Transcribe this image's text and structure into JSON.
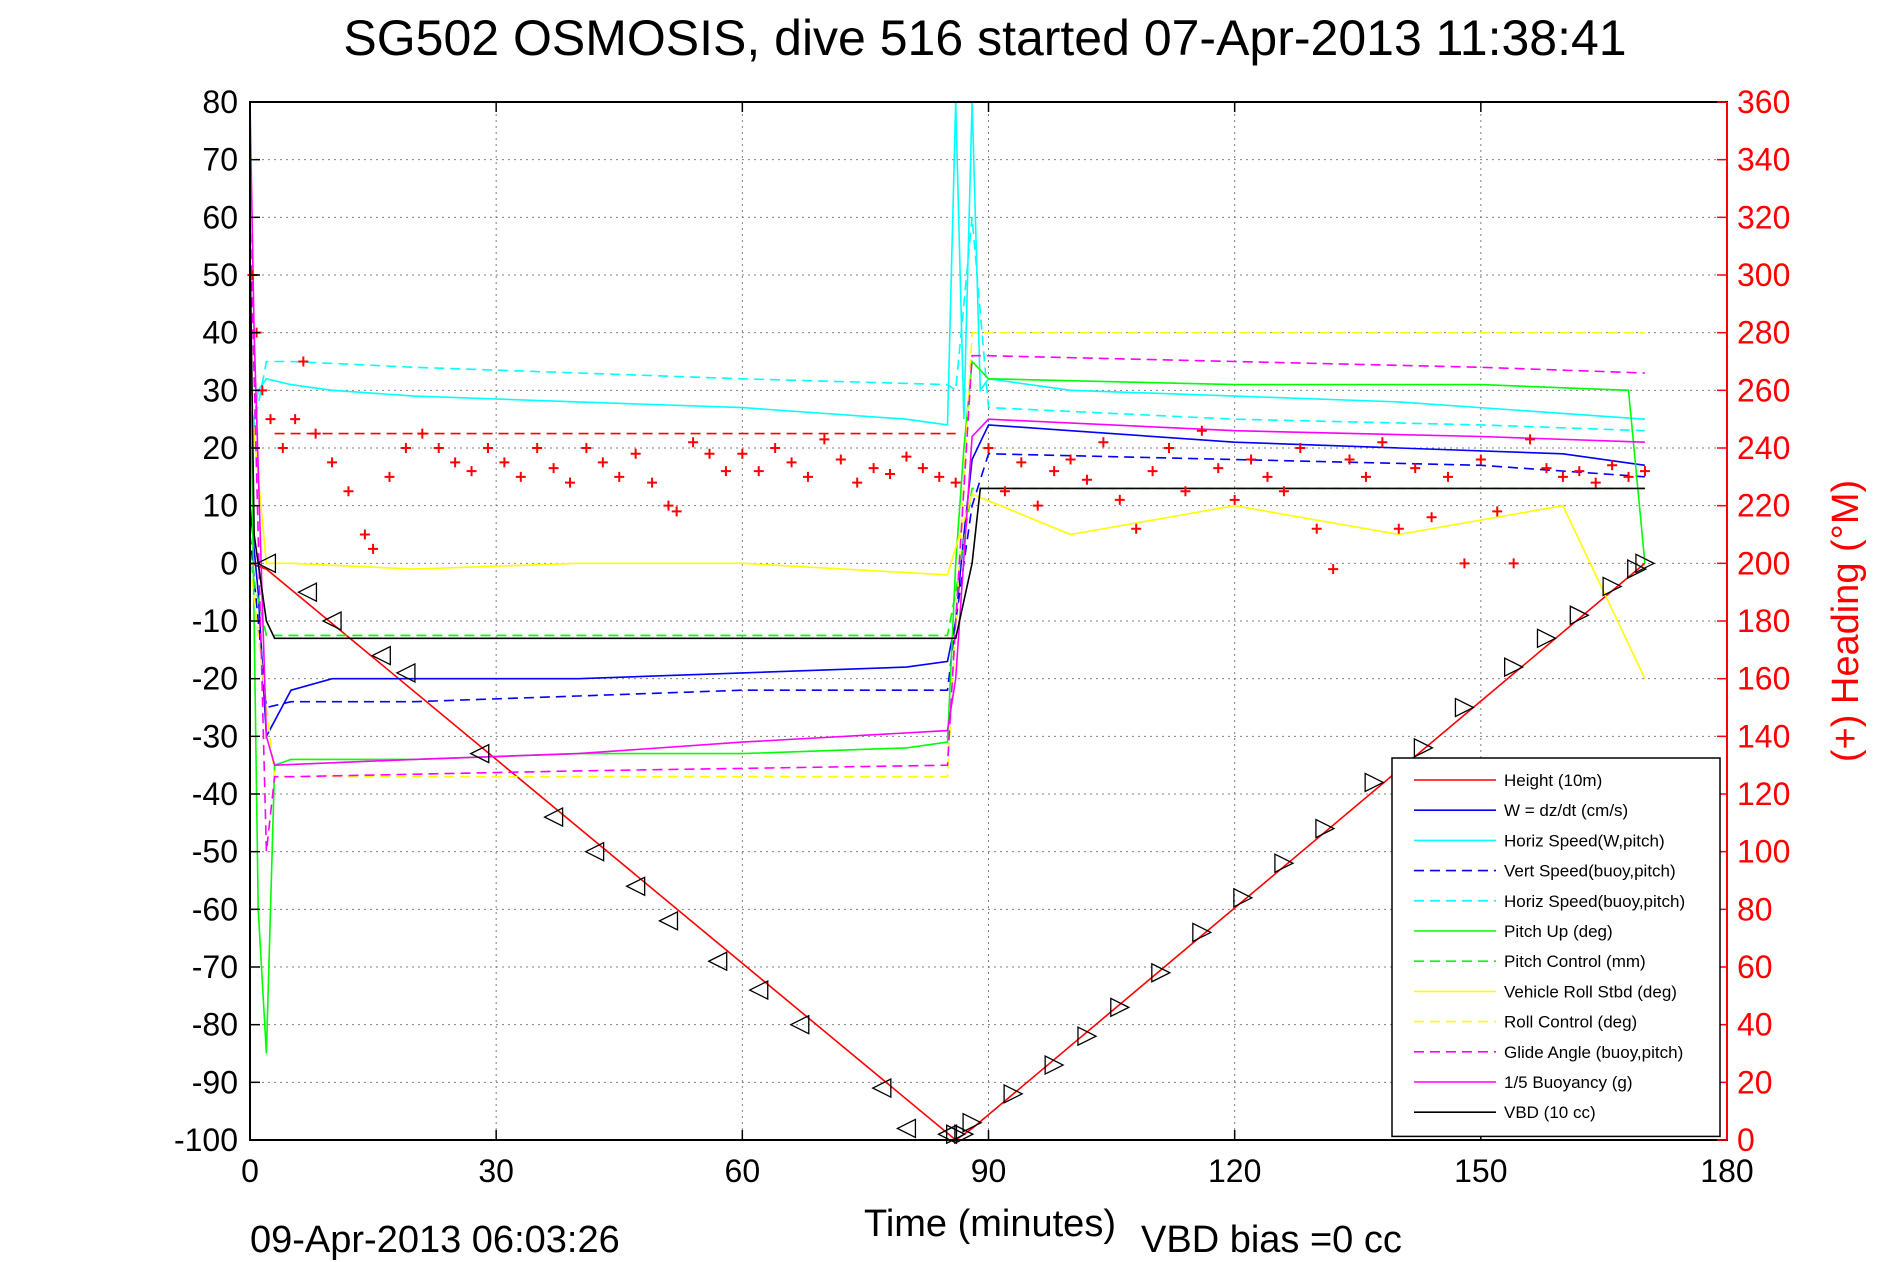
{
  "chart_data": {
    "type": "line",
    "title": "SG502 OSMOSIS, dive 516 started 07-Apr-2013 11:38:41",
    "xlabel": "Time (minutes)",
    "ylabel": "",
    "y2label": "(+) Heading (°M)",
    "xlim": [
      0,
      180
    ],
    "ylim": [
      -100,
      80
    ],
    "y2lim": [
      0,
      360
    ],
    "xticks": [
      "0",
      "30",
      "60",
      "90",
      "120",
      "150",
      "180"
    ],
    "yticks": [
      "80",
      "70",
      "60",
      "50",
      "40",
      "30",
      "20",
      "10",
      "0",
      "-10",
      "-20",
      "-30",
      "-40",
      "-50",
      "-60",
      "-70",
      "-80",
      "-90",
      "-100"
    ],
    "y2ticks": [
      "360",
      "340",
      "320",
      "300",
      "280",
      "260",
      "240",
      "220",
      "200",
      "180",
      "160",
      "140",
      "120",
      "100",
      "80",
      "60",
      "40",
      "20",
      "0"
    ],
    "grid": true,
    "legend_position": "bottom-right",
    "footer_left": "09-Apr-2013 06:03:26",
    "footer_right": "VBD bias =0 cc",
    "colors": {
      "title": "#000000",
      "right_axis": "#ff0000",
      "grid": "#808080"
    },
    "series": [
      {
        "name": "Height (10m)",
        "color": "#ff0000",
        "style": "solid",
        "x": [
          0,
          2,
          86,
          88,
          170
        ],
        "y": [
          0,
          -1,
          -100,
          -98,
          0
        ]
      },
      {
        "name": "W = dz/dt (cm/s)",
        "color": "#0000ff",
        "style": "solid",
        "x": [
          0,
          1,
          2,
          5,
          10,
          20,
          40,
          60,
          80,
          85,
          86,
          87,
          88,
          90,
          100,
          120,
          140,
          160,
          170
        ],
        "y": [
          10,
          -5,
          -30,
          -22,
          -20,
          -20,
          -20,
          -19,
          -18,
          -17,
          -10,
          5,
          18,
          24,
          23,
          21,
          20,
          19,
          17
        ]
      },
      {
        "name": "Horiz Speed(W,pitch)",
        "color": "#00ffff",
        "style": "solid",
        "x": [
          0,
          1,
          2,
          5,
          10,
          20,
          40,
          60,
          80,
          85,
          86,
          87,
          88,
          89,
          90,
          100,
          120,
          140,
          160,
          170
        ],
        "y": [
          20,
          30,
          32,
          31,
          30,
          29,
          28,
          27,
          25,
          24,
          80,
          25,
          80,
          30,
          32,
          30,
          29,
          28,
          26,
          25
        ]
      },
      {
        "name": "Vert Speed(buoy,pitch)",
        "color": "#0000ff",
        "style": "dashed",
        "x": [
          0,
          2,
          5,
          20,
          40,
          60,
          85,
          86,
          88,
          90,
          120,
          150,
          170
        ],
        "y": [
          5,
          -25,
          -24,
          -24,
          -23,
          -22,
          -22,
          -10,
          10,
          19,
          18,
          17,
          15
        ]
      },
      {
        "name": "Horiz Speed(buoy,pitch)",
        "color": "#00ffff",
        "style": "dashed",
        "x": [
          0,
          2,
          5,
          20,
          40,
          60,
          85,
          86,
          88,
          90,
          120,
          150,
          170
        ],
        "y": [
          20,
          35,
          35,
          34,
          33,
          32,
          31,
          30,
          60,
          27,
          25,
          24,
          23
        ]
      },
      {
        "name": "Pitch Up (deg)",
        "color": "#00ff00",
        "style": "solid",
        "x": [
          0,
          1,
          2,
          3,
          5,
          20,
          40,
          60,
          80,
          85,
          86,
          87,
          88,
          90,
          120,
          150,
          168,
          170
        ],
        "y": [
          40,
          -60,
          -85,
          -35,
          -34,
          -34,
          -33,
          -33,
          -32,
          -31,
          0,
          20,
          35,
          32,
          31,
          31,
          30,
          0
        ]
      },
      {
        "name": "Pitch Control (mm)",
        "color": "#00ff00",
        "style": "dashed",
        "x": [
          0,
          2,
          85,
          86,
          88,
          170
        ],
        "y": [
          0,
          -12.5,
          -12.5,
          -5,
          13,
          13
        ]
      },
      {
        "name": "Vehicle Roll Stbd (deg)",
        "color": "#ffff00",
        "style": "solid",
        "x": [
          0,
          2,
          5,
          20,
          40,
          60,
          85,
          88,
          100,
          120,
          140,
          160,
          170
        ],
        "y": [
          30,
          0,
          0,
          -1,
          0,
          0,
          -2,
          12,
          5,
          10,
          5,
          10,
          -20
        ]
      },
      {
        "name": "Roll Control (deg)",
        "color": "#ffff00",
        "style": "dashed",
        "x": [
          0,
          3,
          85,
          88,
          170
        ],
        "y": [
          0,
          -37,
          -37,
          40,
          40
        ]
      },
      {
        "name": "Glide Angle (buoy,pitch)",
        "color": "#ff00ff",
        "style": "dashed",
        "x": [
          0,
          2,
          3,
          5,
          40,
          85,
          86,
          88,
          90,
          120,
          150,
          170
        ],
        "y": [
          60,
          -50,
          -37,
          -37,
          -36,
          -35,
          -10,
          36,
          36,
          35,
          34,
          33
        ]
      },
      {
        "name": "1/5 Buoyancy (g)",
        "color": "#ff00ff",
        "style": "solid",
        "x": [
          0,
          0.5,
          2,
          3,
          20,
          40,
          60,
          85,
          86,
          88,
          90,
          120,
          150,
          170
        ],
        "y": [
          80,
          40,
          -30,
          -35,
          -34,
          -33,
          -31,
          -29,
          -20,
          22,
          25,
          23,
          22,
          21
        ]
      },
      {
        "name": "VBD (10 cc)",
        "color": "#000000",
        "style": "solid",
        "x": [
          0,
          0.5,
          2,
          3,
          86,
          88,
          89,
          170
        ],
        "y": [
          55,
          5,
          -10,
          -13,
          -13,
          0,
          13,
          13
        ]
      }
    ],
    "heading_points": {
      "marker": "+",
      "color": "#ff0000",
      "axis": "right",
      "x": [
        0.3,
        0.8,
        1.5,
        2.5,
        4,
        5.5,
        6.5,
        8,
        10,
        12,
        14,
        15,
        17,
        19,
        21,
        23,
        25,
        27,
        29,
        31,
        33,
        35,
        37,
        39,
        41,
        43,
        45,
        47,
        49,
        51,
        52,
        54,
        56,
        58,
        60,
        62,
        64,
        66,
        68,
        70,
        72,
        74,
        76,
        78,
        80,
        82,
        84,
        86,
        90,
        92,
        94,
        96,
        98,
        100,
        102,
        104,
        106,
        108,
        110,
        112,
        114,
        116,
        118,
        120,
        122,
        124,
        126,
        128,
        130,
        132,
        134,
        136,
        138,
        140,
        142,
        144,
        146,
        148,
        150,
        152,
        154,
        156,
        158,
        160,
        162,
        164,
        166,
        168,
        170
      ],
      "y": [
        300,
        280,
        260,
        250,
        240,
        250,
        270,
        245,
        235,
        225,
        210,
        205,
        230,
        240,
        245,
        240,
        235,
        232,
        240,
        235,
        230,
        240,
        233,
        228,
        240,
        235,
        230,
        238,
        228,
        220,
        218,
        242,
        238,
        232,
        238,
        232,
        240,
        235,
        230,
        243,
        236,
        228,
        233,
        231,
        237,
        233,
        230,
        228,
        240,
        225,
        235,
        220,
        232,
        236,
        229,
        242,
        222,
        212,
        232,
        240,
        225,
        246,
        233,
        222,
        236,
        230,
        225,
        240,
        212,
        198,
        236,
        230,
        242,
        212,
        233,
        216,
        230,
        200,
        236,
        218,
        200,
        243,
        233,
        230,
        232,
        228,
        234,
        230,
        232
      ]
    },
    "heading_mean": {
      "color": "#ff0000",
      "style": "dashed",
      "axis": "right",
      "value": 245,
      "x": [
        3,
        86
      ]
    },
    "vbd_markers": {
      "color": "#000000",
      "dive_marker": "triangle-left",
      "climb_marker": "triangle-right",
      "x": [
        2,
        7,
        10,
        16,
        19,
        28,
        37,
        42,
        47,
        51,
        57,
        62,
        67,
        77,
        80,
        85,
        86,
        87,
        88,
        93,
        98,
        102,
        106,
        111,
        116,
        121,
        126,
        131,
        137,
        143,
        148,
        154,
        158,
        162,
        166,
        169,
        170
      ],
      "y": [
        0,
        -5,
        -10,
        -16,
        -19,
        -33,
        -44,
        -50,
        -56,
        -62,
        -69,
        -74,
        -80,
        -91,
        -98,
        -99,
        -99,
        -99,
        -97,
        -92,
        -87,
        -82,
        -77,
        -71,
        -64,
        -58,
        -52,
        -46,
        -38,
        -32,
        -25,
        -18,
        -13,
        -9,
        -4,
        -1,
        0
      ]
    }
  }
}
